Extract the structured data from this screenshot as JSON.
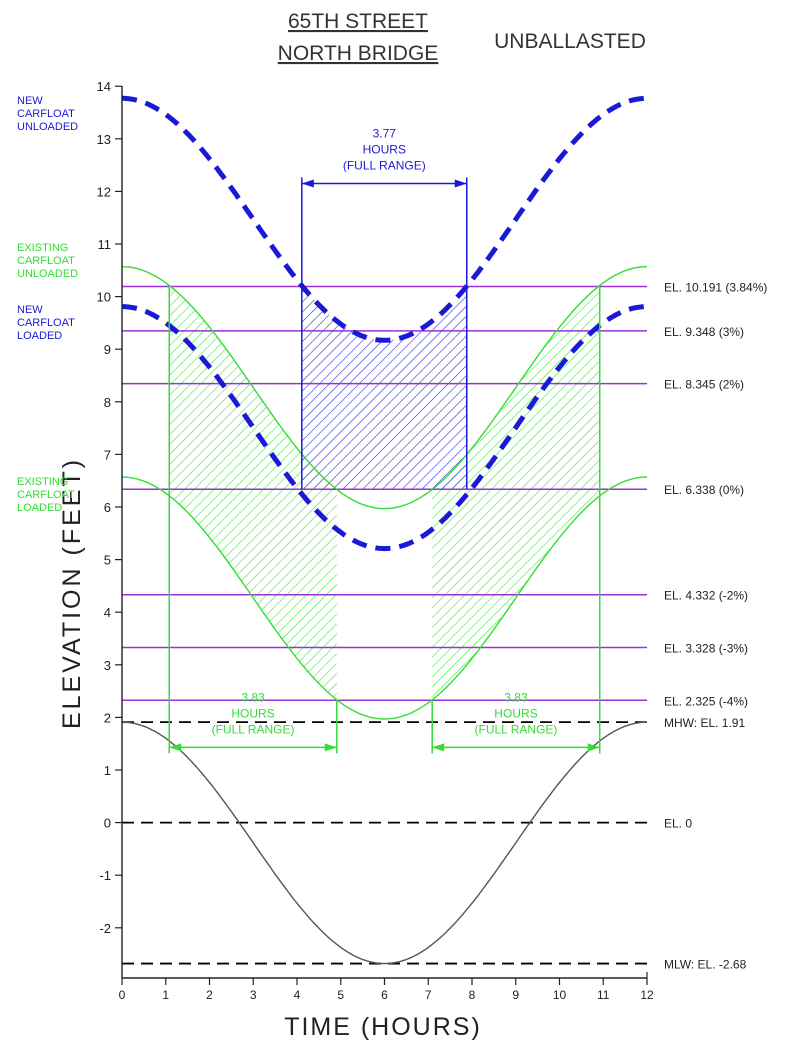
{
  "chart_data": {
    "type": "line",
    "title_line1": "65TH STREET",
    "title_line2": "NORTH BRIDGE",
    "subtitle": "UNBALLASTED",
    "xlabel": "TIME (HOURS)",
    "ylabel": "ELEVATION (FEET)",
    "xlim": [
      0,
      12
    ],
    "ylim": [
      -3.15,
      14
    ],
    "xticks": [
      "0",
      "1",
      "2",
      "3",
      "4",
      "5",
      "6",
      "7",
      "8",
      "9",
      "10",
      "11",
      "12"
    ],
    "yticks": [
      "14",
      "13",
      "12",
      "11",
      "10",
      "9",
      "8",
      "7",
      "6",
      "5",
      "4",
      "3",
      "2",
      "1",
      "0",
      "-1",
      "-2"
    ],
    "grid": false,
    "series": [
      {
        "name": "NEW CARFLOAT UNLOADED",
        "label_lines": [
          "NEW",
          "CARFLOAT",
          "UNLOADED"
        ],
        "color": "#1a1ad6",
        "style": "dashed-heavy",
        "mean": 11.47,
        "amplitude": 2.3,
        "x": [
          0,
          1,
          2,
          3,
          4,
          5,
          6,
          7,
          8,
          9,
          10,
          11,
          12
        ],
        "y": [
          13.77,
          13.46,
          12.62,
          11.47,
          10.32,
          9.48,
          9.17,
          9.48,
          10.32,
          11.47,
          12.62,
          13.46,
          13.77
        ]
      },
      {
        "name": "NEW CARFLOAT LOADED",
        "label_lines": [
          "NEW",
          "CARFLOAT",
          "LOADED"
        ],
        "color": "#1a1ad6",
        "style": "dashed-heavy",
        "mean": 7.51,
        "amplitude": 2.3,
        "x": [
          0,
          1,
          2,
          3,
          4,
          5,
          6,
          7,
          8,
          9,
          10,
          11,
          12
        ],
        "y": [
          9.81,
          9.5,
          8.66,
          7.51,
          6.36,
          5.52,
          5.21,
          5.52,
          6.36,
          7.51,
          8.66,
          9.5,
          9.81
        ]
      },
      {
        "name": "EXISTING CARFLOAT UNLOADED",
        "label_lines": [
          "EXISTING",
          "CARFLOAT",
          "UNLOADED"
        ],
        "color": "#33dd33",
        "style": "solid-thin",
        "mean": 8.27,
        "amplitude": 2.3,
        "x": [
          0,
          1,
          2,
          3,
          4,
          5,
          6,
          7,
          8,
          9,
          10,
          11,
          12
        ],
        "y": [
          10.57,
          10.26,
          9.42,
          8.27,
          7.12,
          6.28,
          5.97,
          6.28,
          7.12,
          8.27,
          9.42,
          10.26,
          10.57
        ]
      },
      {
        "name": "EXISTING CARFLOAT LOADED",
        "label_lines": [
          "EXISTING",
          "CARFLOAT",
          "LOADED"
        ],
        "color": "#33dd33",
        "style": "solid-thin",
        "mean": 4.27,
        "amplitude": 2.3,
        "x": [
          0,
          1,
          2,
          3,
          4,
          5,
          6,
          7,
          8,
          9,
          10,
          11,
          12
        ],
        "y": [
          6.57,
          6.26,
          5.42,
          4.27,
          3.12,
          2.28,
          1.97,
          2.28,
          3.12,
          4.27,
          5.42,
          6.26,
          6.57
        ]
      },
      {
        "name": "Tide",
        "label_lines": [],
        "color": "#555555",
        "style": "solid-thin",
        "mean": -0.385,
        "amplitude": 2.295,
        "x": [
          0,
          1,
          2,
          3,
          4,
          5,
          6,
          7,
          8,
          9,
          10,
          11,
          12
        ],
        "y": [
          1.91,
          1.6,
          0.76,
          -0.39,
          -1.53,
          -2.37,
          -2.68,
          -2.37,
          -1.53,
          -0.39,
          0.76,
          1.6,
          1.91
        ]
      }
    ],
    "reference_lines": [
      {
        "y": 10.191,
        "label": "EL. 10.191 (3.84%)",
        "color": "#9a30d8",
        "style": "solid"
      },
      {
        "y": 9.348,
        "label": "EL. 9.348 (3%)",
        "color": "#9a30d8",
        "style": "solid"
      },
      {
        "y": 8.345,
        "label": "EL. 8.345 (2%)",
        "color": "#9a30d8",
        "style": "solid"
      },
      {
        "y": 6.338,
        "label": "EL. 6.338 (0%)",
        "color": "#9a30d8",
        "style": "solid"
      },
      {
        "y": 4.332,
        "label": "EL. 4.332 (-2%)",
        "color": "#9a30d8",
        "style": "solid"
      },
      {
        "y": 3.328,
        "label": "EL. 3.328 (-3%)",
        "color": "#9a30d8",
        "style": "solid"
      },
      {
        "y": 2.325,
        "label": "EL. 2.325 (-4%)",
        "color": "#9a30d8",
        "style": "solid"
      },
      {
        "y": 1.91,
        "label": "MHW: EL. 1.91",
        "color": "#000000",
        "style": "dashed"
      },
      {
        "y": 0,
        "label": "EL. 0",
        "color": "#000000",
        "style": "dashed"
      },
      {
        "y": -2.68,
        "label": "MLW: EL. -2.68",
        "color": "#000000",
        "style": "dashed"
      }
    ],
    "annotations": [
      {
        "lines": [
          "3.77",
          "HOURS",
          "(FULL RANGE)"
        ],
        "x_start": 4.11,
        "x_end": 7.88,
        "y": 12.15,
        "color": "#1a1ad6"
      },
      {
        "lines": [
          "3.83",
          "HOURS",
          "(FULL RANGE)"
        ],
        "x_start": 1.08,
        "x_end": 4.91,
        "y": 1.43,
        "color": "#33dd33"
      },
      {
        "lines": [
          "3.83",
          "HOURS",
          "(FULL RANGE)"
        ],
        "x_start": 7.09,
        "x_end": 10.92,
        "y": 1.43,
        "color": "#33dd33"
      }
    ],
    "shaded_regions": [
      {
        "color": "#33dd33",
        "between": [
          "EXISTING CARFLOAT UNLOADED",
          "EXISTING CARFLOAT LOADED"
        ],
        "x_ranges": [
          [
            1.08,
            4.91
          ],
          [
            7.09,
            10.92
          ]
        ],
        "clip_y": [
          2.325,
          10.191
        ]
      },
      {
        "color": "#1a1ad6",
        "between": [
          "NEW CARFLOAT UNLOADED",
          "NEW CARFLOAT LOADED"
        ],
        "x_ranges": [
          [
            4.11,
            7.88
          ]
        ],
        "clip_y": [
          6.338,
          10.191
        ]
      }
    ]
  }
}
